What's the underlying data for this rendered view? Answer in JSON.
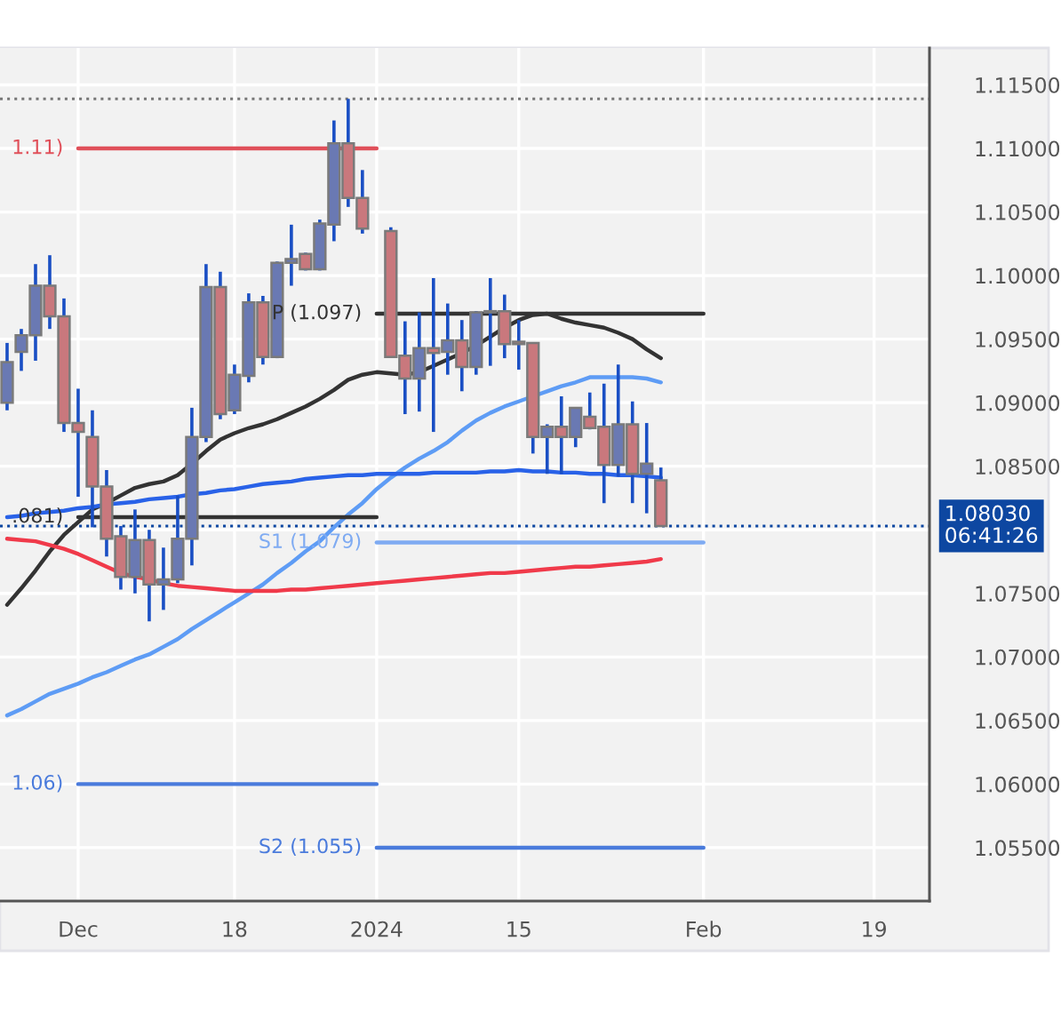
{
  "chart_data": {
    "type": "candlestick",
    "categories": [
      null,
      null,
      null,
      null,
      null,
      "Dec",
      null,
      null,
      null,
      null,
      null,
      null,
      null,
      null,
      null,
      null,
      "18",
      null,
      null,
      null,
      null,
      null,
      null,
      null,
      null,
      null,
      "2024",
      null,
      null,
      null,
      null,
      null,
      null,
      null,
      null,
      null,
      "15",
      null,
      null,
      null,
      null,
      null,
      null,
      null,
      null,
      null,
      null,
      null,
      null,
      "Feb",
      null,
      null,
      null,
      null,
      null,
      null,
      null,
      null,
      null,
      null,
      null,
      "19",
      null,
      null,
      null
    ],
    "ylim": [
      1.0508,
      1.1179
    ],
    "yticks": [
      {
        "value": 1.055,
        "label": "1.05500"
      },
      {
        "value": 1.06,
        "label": "1.06000"
      },
      {
        "value": 1.065,
        "label": "1.06500"
      },
      {
        "value": 1.07,
        "label": "1.07000"
      },
      {
        "value": 1.075,
        "label": "1.07500"
      },
      {
        "value": 1.08,
        "label": null
      },
      {
        "value": 1.085,
        "label": "1.08500"
      },
      {
        "value": 1.09,
        "label": "1.09000"
      },
      {
        "value": 1.095,
        "label": "1.09500"
      },
      {
        "value": 1.1,
        "label": "1.10000"
      },
      {
        "value": 1.105,
        "label": "1.10500"
      },
      {
        "value": 1.11,
        "label": "1.11000"
      },
      {
        "value": 1.115,
        "label": "1.11500"
      }
    ],
    "grid": true,
    "series": [
      {
        "type": "line",
        "color": "#333333",
        "values": [
          1.0741,
          1.0754,
          1.0768,
          1.0783,
          1.0796,
          1.0806,
          1.0816,
          1.0821,
          1.0827,
          1.0833,
          1.0836,
          1.0838,
          1.0843,
          1.0852,
          1.0862,
          1.0871,
          1.0876,
          1.088,
          1.0883,
          1.0887,
          1.0892,
          1.0897,
          1.0903,
          1.091,
          1.0918,
          1.0922,
          1.0924,
          1.0923,
          1.0922,
          1.0924,
          1.0929,
          1.0934,
          1.0939,
          1.0945,
          1.0952,
          1.0959,
          1.0965,
          1.0969,
          1.097,
          1.0966,
          1.0963,
          1.0961,
          1.0959,
          1.0955,
          1.095,
          1.0942,
          1.0935,
          null,
          null,
          null,
          null,
          null,
          null,
          null,
          null,
          null,
          null,
          null,
          null,
          null,
          null,
          null,
          null,
          null,
          null
        ]
      },
      {
        "type": "line",
        "color": "#5e9cf5",
        "values": [
          1.0654,
          1.0659,
          1.0665,
          1.0671,
          1.0675,
          1.0679,
          1.0684,
          1.0688,
          1.0693,
          1.0698,
          1.0702,
          1.0708,
          1.0714,
          1.0722,
          1.0729,
          1.0736,
          1.0743,
          1.075,
          1.0757,
          1.0766,
          1.0774,
          1.0783,
          1.0791,
          1.0802,
          1.0812,
          1.0821,
          1.0832,
          1.0841,
          1.0849,
          1.0856,
          1.0862,
          1.0869,
          1.0878,
          1.0886,
          1.0892,
          1.0897,
          1.0901,
          1.0905,
          1.0909,
          1.0913,
          1.0916,
          1.092,
          1.092,
          1.092,
          1.092,
          1.0919,
          1.0916,
          null,
          null,
          null,
          null,
          null,
          null,
          null,
          null,
          null,
          null,
          null,
          null,
          null,
          null,
          null,
          null,
          null,
          null
        ]
      },
      {
        "type": "line",
        "color": "#2962e8",
        "values": [
          1.081,
          1.0811,
          1.0813,
          1.0814,
          1.0815,
          1.0817,
          1.0818,
          1.082,
          1.0821,
          1.0822,
          1.0824,
          1.0825,
          1.0826,
          1.0828,
          1.0829,
          1.0831,
          1.0832,
          1.0834,
          1.0836,
          1.0837,
          1.0838,
          1.084,
          1.0841,
          1.0842,
          1.0843,
          1.0843,
          1.0844,
          1.0844,
          1.0844,
          1.0844,
          1.0845,
          1.0845,
          1.0845,
          1.0845,
          1.0846,
          1.0846,
          1.0847,
          1.0846,
          1.0846,
          1.0845,
          1.0845,
          1.0844,
          1.0844,
          1.0843,
          1.0843,
          1.0842,
          1.0841,
          null,
          null,
          null,
          null,
          null,
          null,
          null,
          null,
          null,
          null,
          null,
          null,
          null,
          null,
          null,
          null,
          null,
          null
        ]
      },
      {
        "type": "line",
        "color": "#f03a4a",
        "values": [
          1.0793,
          1.0792,
          1.0791,
          1.0788,
          1.0785,
          1.0781,
          1.0776,
          1.0771,
          1.0766,
          1.0763,
          1.0761,
          1.0758,
          1.0756,
          1.0755,
          1.0754,
          1.0753,
          1.0752,
          1.0752,
          1.0752,
          1.0752,
          1.0753,
          1.0753,
          1.0754,
          1.0755,
          1.0756,
          1.0757,
          1.0758,
          1.0759,
          1.076,
          1.0761,
          1.0762,
          1.0763,
          1.0764,
          1.0765,
          1.0766,
          1.0766,
          1.0767,
          1.0768,
          1.0769,
          1.077,
          1.0771,
          1.0771,
          1.0772,
          1.0773,
          1.0774,
          1.0775,
          1.0777,
          null,
          null,
          null,
          null,
          null,
          null,
          null,
          null,
          null,
          null,
          null,
          null,
          null,
          null,
          null,
          null,
          null,
          null
        ]
      },
      {
        "type": "line",
        "name": "1.11)",
        "color": "#e0505a",
        "values": [
          null,
          null,
          null,
          null,
          null,
          1.11,
          1.11,
          1.11,
          1.11,
          1.11,
          1.11,
          1.11,
          1.11,
          1.11,
          1.11,
          1.11,
          1.11,
          1.11,
          1.11,
          1.11,
          1.11,
          1.11,
          1.11,
          1.11,
          1.11,
          1.11,
          1.11,
          null,
          null,
          null,
          null,
          null,
          null,
          null,
          null,
          null,
          null,
          null,
          null,
          null,
          null,
          null,
          null,
          null,
          null,
          null,
          null,
          null,
          null,
          null,
          null,
          null,
          null,
          null,
          null,
          null,
          null,
          null,
          null,
          null,
          null,
          null,
          null,
          null,
          null
        ]
      },
      {
        "type": "line",
        "name": ".081)",
        "color": "#333333",
        "values": [
          null,
          null,
          null,
          null,
          null,
          1.081,
          1.081,
          1.081,
          1.081,
          1.081,
          1.081,
          1.081,
          1.081,
          1.081,
          1.081,
          1.081,
          1.081,
          1.081,
          1.081,
          1.081,
          1.081,
          1.081,
          1.081,
          1.081,
          1.081,
          1.081,
          1.081,
          null,
          null,
          null,
          null,
          null,
          null,
          null,
          null,
          null,
          null,
          null,
          null,
          null,
          null,
          null,
          null,
          null,
          null,
          null,
          null,
          null,
          null,
          null,
          null,
          null,
          null,
          null,
          null,
          null,
          null,
          null,
          null,
          null,
          null,
          null,
          null,
          null,
          null
        ]
      },
      {
        "type": "line",
        "name": "1.06)",
        "color": "#4a7bdc",
        "values": [
          null,
          null,
          null,
          null,
          null,
          1.06,
          1.06,
          1.06,
          1.06,
          1.06,
          1.06,
          1.06,
          1.06,
          1.06,
          1.06,
          1.06,
          1.06,
          1.06,
          1.06,
          1.06,
          1.06,
          1.06,
          1.06,
          1.06,
          1.06,
          1.06,
          1.06,
          null,
          null,
          null,
          null,
          null,
          null,
          null,
          null,
          null,
          null,
          null,
          null,
          null,
          null,
          null,
          null,
          null,
          null,
          null,
          null,
          null,
          null,
          null,
          null,
          null,
          null,
          null,
          null,
          null,
          null,
          null,
          null,
          null,
          null,
          null,
          null,
          null,
          null
        ]
      },
      {
        "type": "line",
        "name": "P (1.097)",
        "color": "#333333",
        "values": [
          null,
          null,
          null,
          null,
          null,
          null,
          null,
          null,
          null,
          null,
          null,
          null,
          null,
          null,
          null,
          null,
          null,
          null,
          null,
          null,
          null,
          null,
          null,
          null,
          null,
          null,
          1.097,
          1.097,
          1.097,
          1.097,
          1.097,
          1.097,
          1.097,
          1.097,
          1.097,
          1.097,
          1.097,
          1.097,
          1.097,
          1.097,
          1.097,
          1.097,
          1.097,
          1.097,
          1.097,
          1.097,
          1.097,
          1.097,
          1.097,
          1.097,
          null,
          null,
          null,
          null,
          null,
          null,
          null,
          null,
          null,
          null,
          null,
          null,
          null,
          null,
          null
        ]
      },
      {
        "type": "line",
        "name": "S1 (1.079)",
        "color": "#7fabf2",
        "values": [
          null,
          null,
          null,
          null,
          null,
          null,
          null,
          null,
          null,
          null,
          null,
          null,
          null,
          null,
          null,
          null,
          null,
          null,
          null,
          null,
          null,
          null,
          null,
          null,
          null,
          null,
          1.079,
          1.079,
          1.079,
          1.079,
          1.079,
          1.079,
          1.079,
          1.079,
          1.079,
          1.079,
          1.079,
          1.079,
          1.079,
          1.079,
          1.079,
          1.079,
          1.079,
          1.079,
          1.079,
          1.079,
          1.079,
          1.079,
          1.079,
          1.079,
          null,
          null,
          null,
          null,
          null,
          null,
          null,
          null,
          null,
          null,
          null,
          null,
          null,
          null,
          null
        ]
      },
      {
        "type": "line",
        "name": "S2 (1.055)",
        "color": "#4a7bdc",
        "values": [
          null,
          null,
          null,
          null,
          null,
          null,
          null,
          null,
          null,
          null,
          null,
          null,
          null,
          null,
          null,
          null,
          null,
          null,
          null,
          null,
          null,
          null,
          null,
          null,
          null,
          null,
          1.055,
          1.055,
          1.055,
          1.055,
          1.055,
          1.055,
          1.055,
          1.055,
          1.055,
          1.055,
          1.055,
          1.055,
          1.055,
          1.055,
          1.055,
          1.055,
          1.055,
          1.055,
          1.055,
          1.055,
          1.055,
          1.055,
          1.055,
          1.055,
          null,
          null,
          null,
          null,
          null,
          null,
          null,
          null,
          null,
          null,
          null,
          null,
          null,
          null,
          null
        ]
      },
      {
        "color": "#6a79b3",
        "ohlc": [
          [
            1.09,
            1.0947,
            1.0894,
            1.0932
          ],
          [
            1.094,
            1.0958,
            1.0925,
            1.0953
          ],
          [
            1.0953,
            1.1009,
            1.0933,
            1.0992
          ],
          null,
          null,
          null,
          null,
          null,
          null,
          [
            1.0763,
            1.0816,
            1.075,
            1.0792
          ],
          null,
          [
            1.0757,
            1.0786,
            1.0737,
            1.0761
          ],
          [
            1.0761,
            1.0827,
            1.0758,
            1.0793
          ],
          [
            1.0793,
            1.0896,
            1.0772,
            1.0873
          ],
          [
            1.0873,
            1.1009,
            1.0869,
            1.0991
          ],
          null,
          [
            1.0894,
            1.093,
            1.0891,
            1.0922
          ],
          [
            1.0921,
            1.0986,
            1.0916,
            1.0979
          ],
          null,
          [
            1.0936,
            1.1011,
            1.0935,
            1.101
          ],
          [
            1.101,
            1.104,
            1.0992,
            1.1013
          ],
          null,
          [
            1.1005,
            1.1044,
            1.1004,
            1.1041
          ],
          [
            1.104,
            1.1122,
            1.1027,
            1.1104
          ],
          null,
          null,
          null,
          null,
          null,
          [
            1.0919,
            1.0971,
            1.0893,
            1.0943
          ],
          null,
          [
            1.094,
            1.0978,
            1.0922,
            1.0949
          ],
          null,
          [
            1.0928,
            1.0972,
            1.0922,
            1.0971
          ],
          [
            1.0971,
            1.0998,
            1.0929,
            1.0972
          ],
          null,
          null,
          null,
          [
            1.0873,
            1.0883,
            1.0844,
            1.0881
          ],
          null,
          [
            1.0873,
            1.0896,
            1.0865,
            1.0896
          ],
          null,
          null,
          [
            1.0851,
            1.093,
            1.0842,
            1.0883
          ],
          null,
          [
            1.0844,
            1.0884,
            1.0813,
            1.0852
          ],
          null,
          null,
          null,
          null,
          null,
          null,
          null,
          null,
          null,
          null,
          null,
          null,
          null,
          null,
          null,
          null,
          null,
          null,
          null
        ]
      },
      {
        "color": "#c9787d",
        "ohlc": [
          null,
          null,
          null,
          [
            1.0992,
            1.1016,
            1.0958,
            1.0968
          ],
          [
            1.0968,
            1.0982,
            1.0877,
            1.0884
          ],
          [
            1.0884,
            1.0911,
            1.0826,
            1.0877
          ],
          [
            1.0873,
            1.0894,
            1.0802,
            1.0834
          ],
          [
            1.0834,
            1.0847,
            1.0779,
            1.0793
          ],
          [
            1.0795,
            1.0803,
            1.0753,
            1.0763
          ],
          null,
          [
            1.0792,
            1.08,
            1.0728,
            1.0757
          ],
          null,
          null,
          null,
          null,
          [
            1.0991,
            1.1003,
            1.0887,
            1.0891
          ],
          null,
          null,
          [
            1.0979,
            1.0984,
            1.093,
            1.0936
          ],
          null,
          null,
          [
            1.1017,
            1.1018,
            1.1004,
            1.1005
          ],
          null,
          null,
          [
            1.1104,
            1.1139,
            1.1054,
            1.1061
          ],
          [
            1.1061,
            1.1083,
            1.1033,
            1.1037
          ],
          null,
          [
            1.1035,
            1.1038,
            1.0936,
            1.0936
          ],
          [
            1.0937,
            1.0964,
            1.0891,
            1.0919
          ],
          null,
          [
            1.0943,
            1.0998,
            1.0877,
            1.0939
          ],
          null,
          [
            1.0949,
            1.0965,
            1.0909,
            1.0928
          ],
          null,
          null,
          [
            1.0972,
            1.0985,
            1.0935,
            1.0946
          ],
          [
            1.0948,
            1.0965,
            1.0926,
            1.0946
          ],
          [
            1.0947,
            1.0947,
            1.086,
            1.0873
          ],
          null,
          [
            1.0881,
            1.0905,
            1.0844,
            1.0873
          ],
          null,
          [
            1.0889,
            1.0908,
            1.0879,
            1.088
          ],
          [
            1.0881,
            1.0915,
            1.0821,
            1.0851
          ],
          null,
          [
            1.0883,
            1.0901,
            1.0821,
            1.0844
          ],
          null,
          [
            1.0839,
            1.0849,
            1.0803,
            1.0803
          ],
          null,
          null,
          null,
          null,
          null,
          null,
          null,
          null,
          null,
          null,
          null,
          null,
          null,
          null,
          null,
          null,
          null,
          null
        ]
      }
    ],
    "ref_lines": [
      {
        "axis": "y",
        "value": 1.1139,
        "color": "#777777",
        "line_style": "dotted"
      },
      {
        "axis": "y",
        "value": 1.0803,
        "label": "1.08030\n06:41:26",
        "color": "#0d47a1",
        "line_style": "dotted"
      }
    ]
  }
}
